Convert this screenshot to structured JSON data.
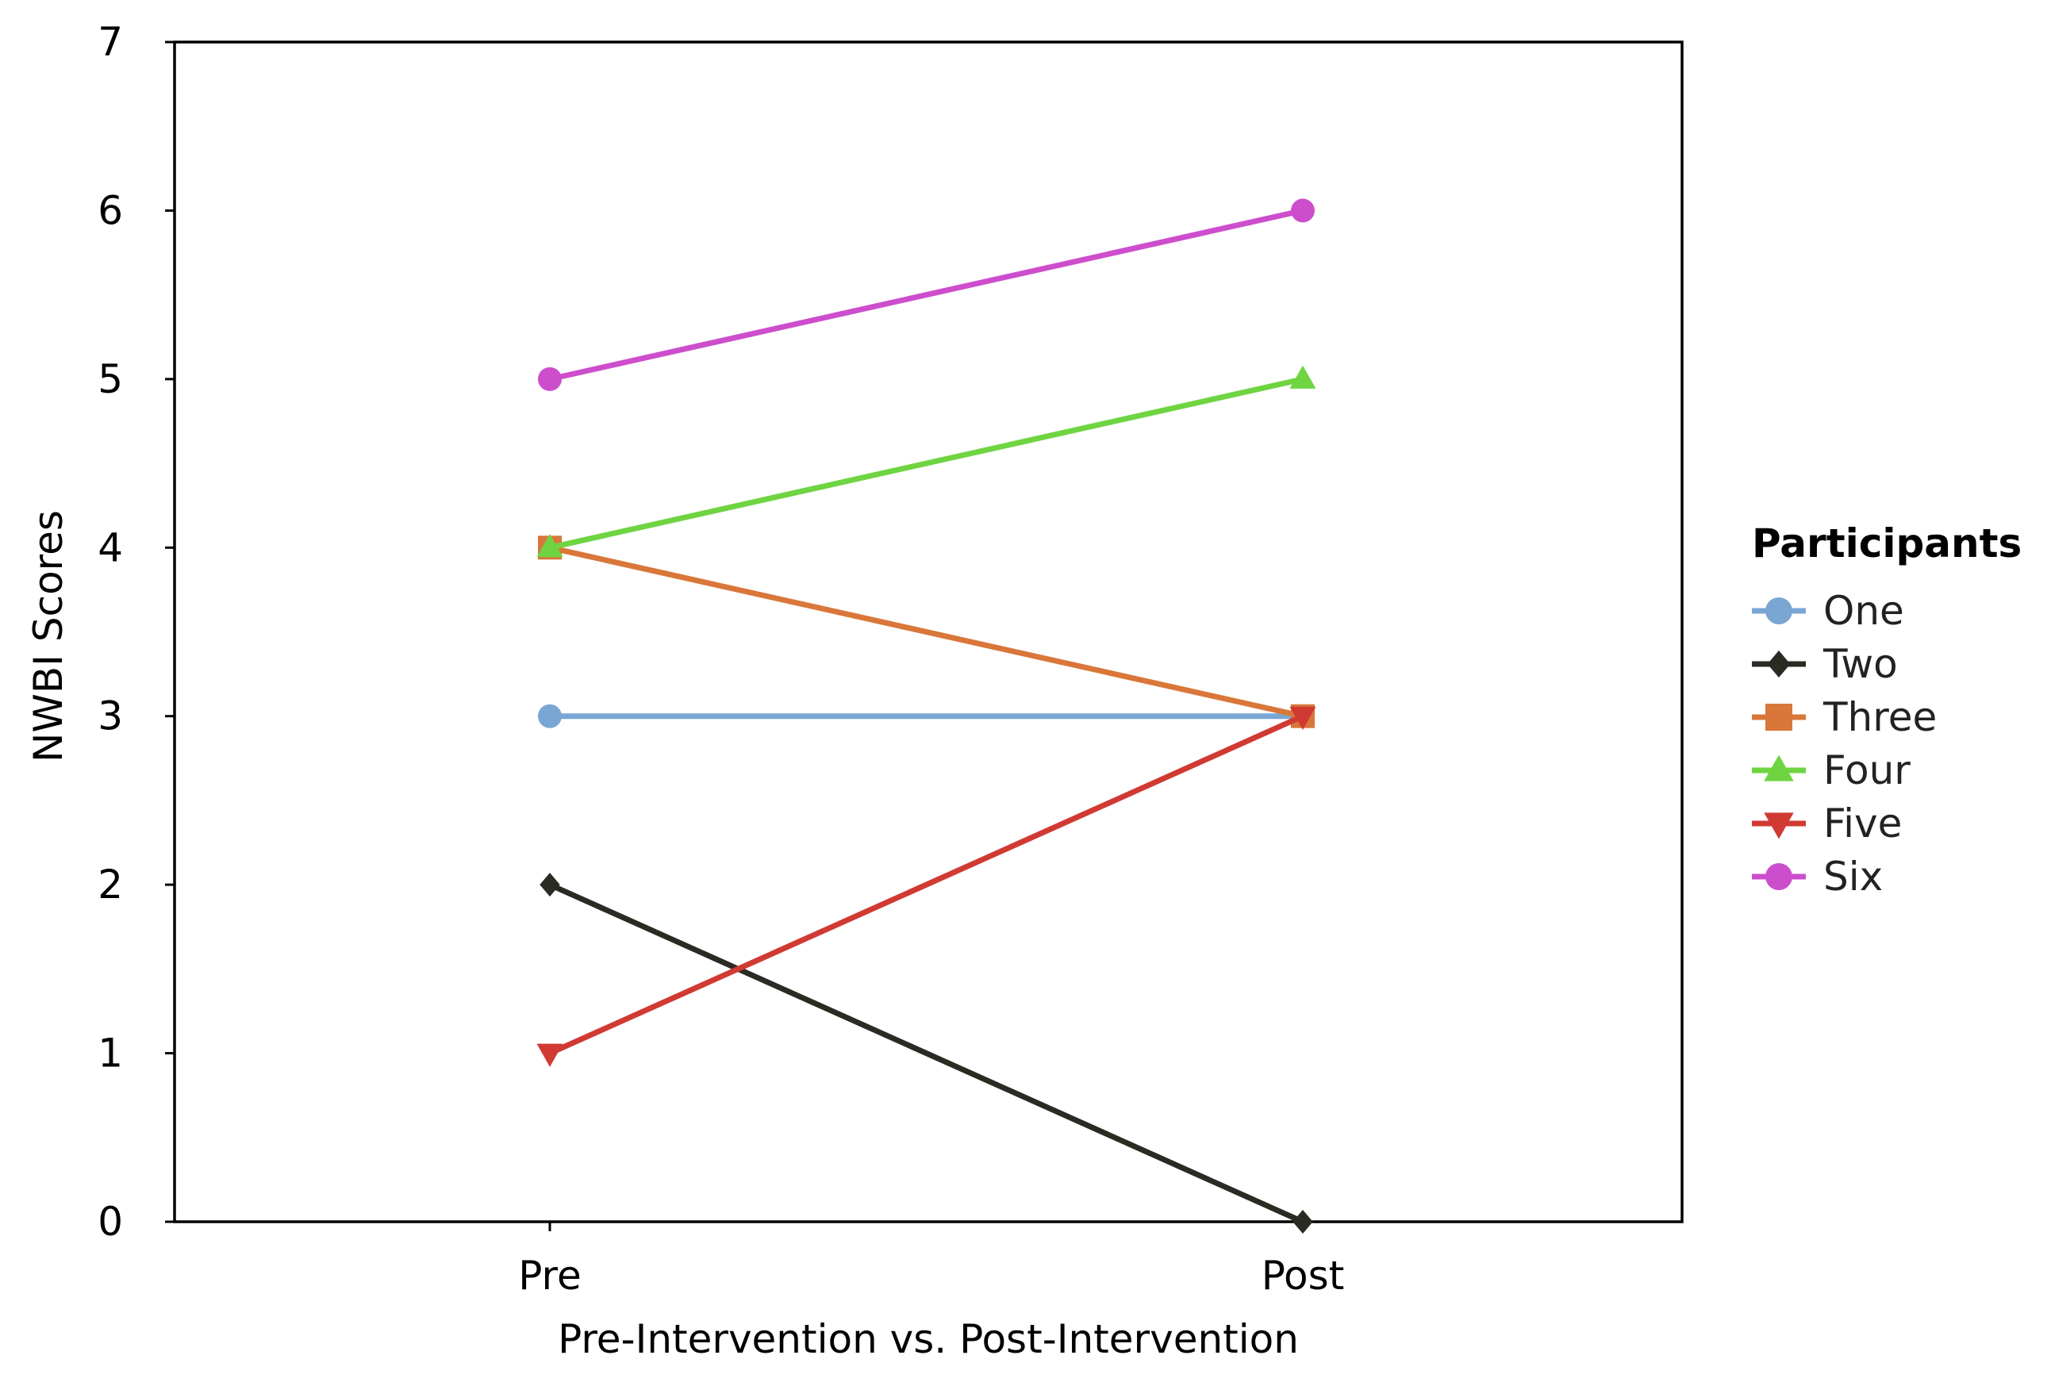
{
  "chart_data": {
    "type": "line",
    "categories": [
      "Pre",
      "Post"
    ],
    "xlabel": "Pre-Intervention vs. Post-Intervention",
    "ylabel": "NWBI Scores",
    "ylim": [
      0,
      7
    ],
    "yticks": [
      "0",
      "1",
      "2",
      "3",
      "4",
      "5",
      "6",
      "7"
    ],
    "grid": false,
    "legend": {
      "title": "Participants",
      "placement": "right"
    },
    "series": [
      {
        "name": "One",
        "values": [
          3,
          3
        ],
        "color": "#7aa6d3",
        "marker": "circle"
      },
      {
        "name": "Two",
        "values": [
          2,
          0
        ],
        "color": "#2b2b24",
        "marker": "diamond"
      },
      {
        "name": "Three",
        "values": [
          4,
          3
        ],
        "color": "#d9773a",
        "marker": "square"
      },
      {
        "name": "Four",
        "values": [
          4,
          5
        ],
        "color": "#6fd442",
        "marker": "triangle-up"
      },
      {
        "name": "Five",
        "values": [
          1,
          3
        ],
        "color": "#d03a33",
        "marker": "triangle-down"
      },
      {
        "name": "Six",
        "values": [
          5,
          6
        ],
        "color": "#cd4ecd",
        "marker": "circle"
      }
    ]
  }
}
